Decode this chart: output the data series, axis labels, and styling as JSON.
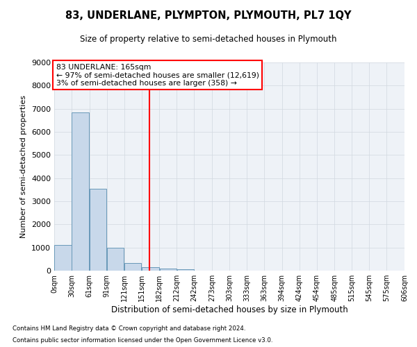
{
  "title": "83, UNDERLANE, PLYMPTON, PLYMOUTH, PL7 1QY",
  "subtitle": "Size of property relative to semi-detached houses in Plymouth",
  "xlabel": "Distribution of semi-detached houses by size in Plymouth",
  "ylabel": "Number of semi-detached properties",
  "bar_values": [
    1100,
    6850,
    3550,
    1000,
    320,
    140,
    100,
    60,
    0,
    0,
    0,
    0,
    0,
    0,
    0,
    0,
    0,
    0,
    0,
    0
  ],
  "bar_color": "#c8d8ea",
  "bar_edge_color": "#6898b8",
  "bins": [
    0,
    30,
    61,
    91,
    121,
    151,
    182,
    212,
    242,
    273,
    303,
    333,
    363,
    394,
    424,
    454,
    485,
    515,
    545,
    575,
    606
  ],
  "bin_labels": [
    "0sqm",
    "30sqm",
    "61sqm",
    "91sqm",
    "121sqm",
    "151sqm",
    "182sqm",
    "212sqm",
    "242sqm",
    "273sqm",
    "303sqm",
    "333sqm",
    "363sqm",
    "394sqm",
    "424sqm",
    "454sqm",
    "485sqm",
    "515sqm",
    "545sqm",
    "575sqm",
    "606sqm"
  ],
  "ylim": [
    0,
    9000
  ],
  "yticks": [
    0,
    1000,
    2000,
    3000,
    4000,
    5000,
    6000,
    7000,
    8000,
    9000
  ],
  "red_line_x": 165,
  "annotation_text_line1": "83 UNDERLANE: 165sqm",
  "annotation_text_line2": "← 97% of semi-detached houses are smaller (12,619)",
  "annotation_text_line3": "3% of semi-detached houses are larger (358) →",
  "footer_line1": "Contains HM Land Registry data © Crown copyright and database right 2024.",
  "footer_line2": "Contains public sector information licensed under the Open Government Licence v3.0.",
  "grid_color": "#d0d8e0",
  "background_color": "#eef2f7"
}
